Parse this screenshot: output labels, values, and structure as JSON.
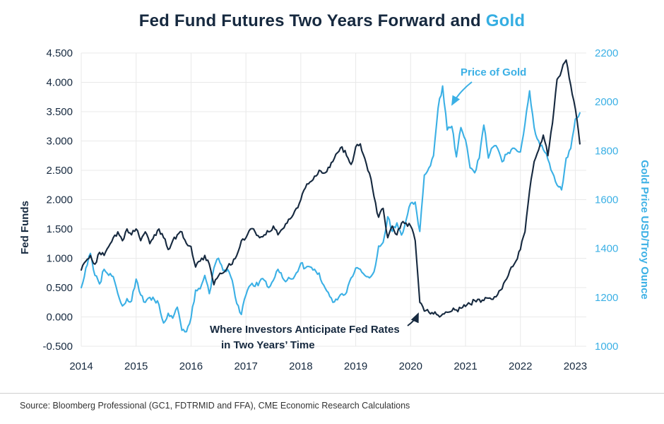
{
  "title": {
    "main": "Fed Fund Futures Two Years Forward and",
    "accent": "Gold"
  },
  "axes": {
    "left_label": "Fed Funds",
    "right_label": "Gold Price USD/Troy Ounce",
    "left_ticks": [
      "4.500",
      "4.000",
      "3.500",
      "3.000",
      "2.500",
      "2.000",
      "1.500",
      "1.000",
      "0.500",
      "0.000",
      "-0.500"
    ],
    "right_ticks": [
      "2200",
      "2000",
      "1800",
      "1600",
      "1400",
      "1200",
      "1000"
    ],
    "x_ticks": [
      "2014",
      "2015",
      "2016",
      "2017",
      "2018",
      "2019",
      "2020",
      "2021",
      "2022",
      "2023"
    ]
  },
  "annotations": {
    "gold_label": "Price of Gold",
    "fed_label_line1": "Where Investors Anticipate Fed Rates",
    "fed_label_line2": "in Two Years’ Time"
  },
  "colors": {
    "navy": "#16293F",
    "blue": "#3BB0E5",
    "grid": "#E9E9E9",
    "source_text": "#333333"
  },
  "footer": {
    "source": "Source: Bloomberg Professional (GC1, FDTRMID and FFA), CME Economic Research Calculations"
  },
  "chart_data": {
    "type": "line",
    "title": "Fed Fund Futures Two Years Forward and Gold",
    "x_range": [
      2014,
      2023.2
    ],
    "x_start_year": 2014,
    "x_step": "monthly",
    "grid": true,
    "left_axis": {
      "label": "Fed Funds",
      "range": [
        -0.5,
        4.5
      ],
      "tick_step": 0.5
    },
    "right_axis": {
      "label": "Gold Price USD/Troy Ounce",
      "range": [
        1000,
        2200
      ],
      "tick_step": 200
    },
    "series": [
      {
        "name": "Where Investors Anticipate Fed Rates in Two Years’ Time",
        "axis": "left",
        "color": "#16293F",
        "values": [
          0.8,
          0.95,
          1.05,
          0.9,
          1.1,
          1.05,
          1.2,
          1.35,
          1.45,
          1.3,
          1.5,
          1.4,
          1.5,
          1.3,
          1.45,
          1.25,
          1.4,
          1.5,
          1.35,
          1.15,
          1.3,
          1.4,
          1.45,
          1.25,
          1.2,
          0.85,
          0.95,
          1.05,
          0.9,
          0.55,
          0.7,
          0.75,
          0.85,
          0.9,
          1.05,
          1.3,
          1.35,
          1.5,
          1.45,
          1.35,
          1.4,
          1.45,
          1.55,
          1.4,
          1.5,
          1.6,
          1.7,
          1.85,
          2.0,
          2.2,
          2.3,
          2.4,
          2.5,
          2.45,
          2.55,
          2.65,
          2.8,
          2.9,
          2.75,
          2.6,
          2.9,
          2.95,
          2.7,
          2.45,
          2.05,
          1.7,
          1.85,
          1.35,
          1.55,
          1.4,
          1.6,
          1.6,
          1.55,
          1.3,
          0.25,
          0.1,
          0.08,
          0.05,
          0.03,
          0.05,
          0.08,
          0.1,
          0.12,
          0.15,
          0.18,
          0.22,
          0.28,
          0.3,
          0.28,
          0.32,
          0.3,
          0.38,
          0.48,
          0.65,
          0.85,
          0.95,
          1.15,
          1.45,
          2.15,
          2.65,
          2.85,
          3.1,
          2.75,
          3.3,
          4.05,
          4.2,
          4.38,
          3.95,
          3.55,
          2.95
        ]
      },
      {
        "name": "Price of Gold",
        "axis": "right",
        "color": "#3BB0E5",
        "values": [
          1240,
          1320,
          1380,
          1290,
          1255,
          1315,
          1290,
          1285,
          1215,
          1165,
          1195,
          1185,
          1275,
          1210,
          1180,
          1200,
          1190,
          1170,
          1095,
          1135,
          1115,
          1160,
          1065,
          1060,
          1115,
          1230,
          1235,
          1290,
          1215,
          1320,
          1360,
          1310,
          1315,
          1270,
          1175,
          1130,
          1210,
          1250,
          1245,
          1265,
          1270,
          1240,
          1270,
          1315,
          1280,
          1270,
          1275,
          1300,
          1340,
          1320,
          1325,
          1315,
          1300,
          1250,
          1220,
          1180,
          1190,
          1215,
          1220,
          1280,
          1320,
          1315,
          1290,
          1280,
          1305,
          1410,
          1425,
          1530,
          1470,
          1505,
          1455,
          1515,
          1585,
          1590,
          1470,
          1700,
          1730,
          1780,
          1975,
          2065,
          1885,
          1900,
          1775,
          1895,
          1845,
          1730,
          1710,
          1770,
          1905,
          1770,
          1815,
          1810,
          1755,
          1785,
          1805,
          1805,
          1795,
          1910,
          2045,
          1895,
          1840,
          1805,
          1765,
          1710,
          1660,
          1640,
          1770,
          1810,
          1930,
          1955
        ]
      }
    ]
  }
}
